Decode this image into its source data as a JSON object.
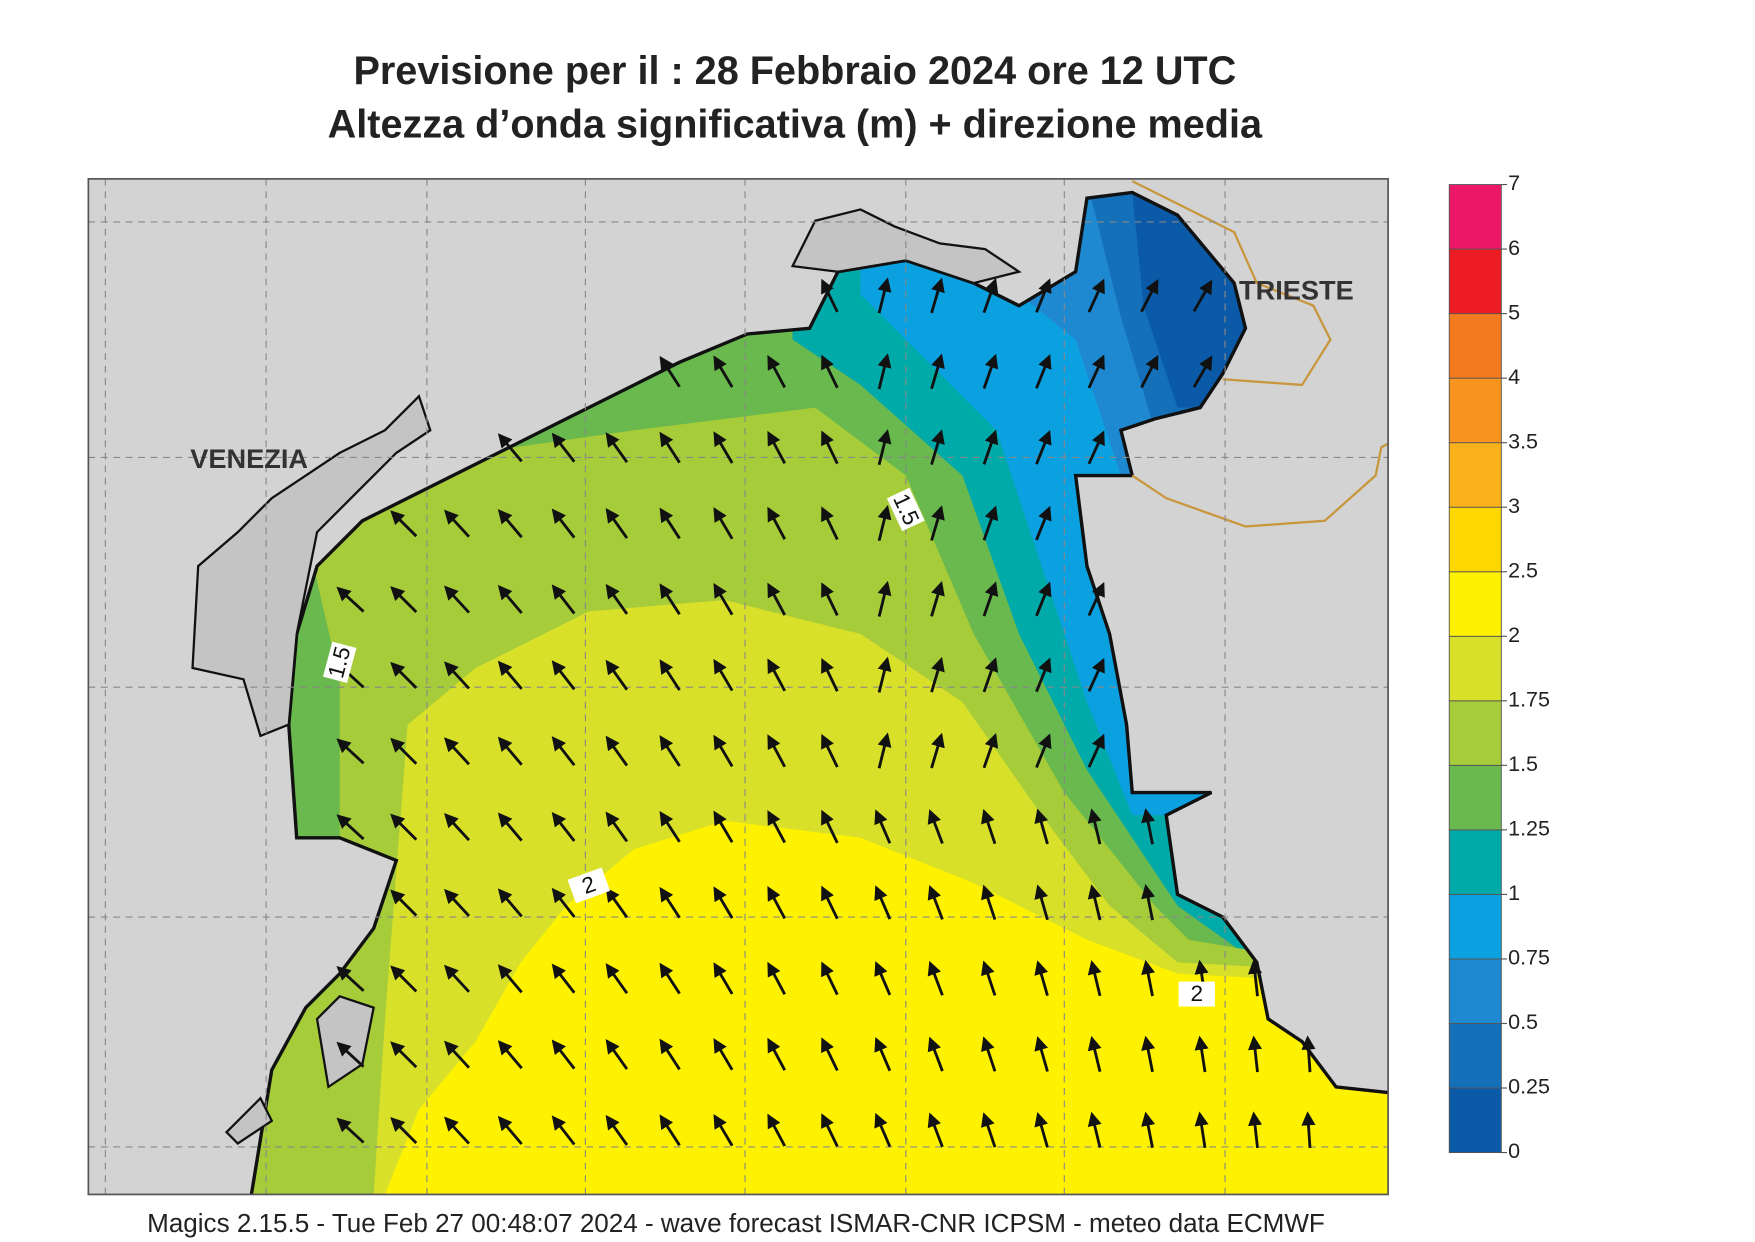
{
  "title": [
    "Previsione per il  :  28  Febbraio 2024   ore 12 UTC",
    "Altezza d’onda significativa (m) + direzione media"
  ],
  "map": {
    "cities": [
      "VENEZIA",
      "TRIESTE"
    ],
    "contour_labels": [
      1.5,
      1.5,
      2,
      2
    ]
  },
  "colorbar": {
    "ticks": [
      0,
      0.25,
      0.5,
      0.75,
      1,
      1.25,
      1.5,
      1.75,
      2,
      2.5,
      3,
      3.5,
      4,
      5,
      6,
      7
    ],
    "colors": [
      "#0a5aa8",
      "#1470b8",
      "#1e88d0",
      "#0ba0e0",
      "#00aaa8",
      "#6ab94e",
      "#a6cc3a",
      "#d8e02a",
      "#fff200",
      "#ffd700",
      "#fbb21a",
      "#f7941d",
      "#f47a20",
      "#ed1c24",
      "#ec1766"
    ]
  },
  "footer": "Magics 2.15.5 - Tue Feb 27 00:48:07 2024 - wave forecast  ISMAR-CNR  ICPSM - meteo data    ECMWF"
}
